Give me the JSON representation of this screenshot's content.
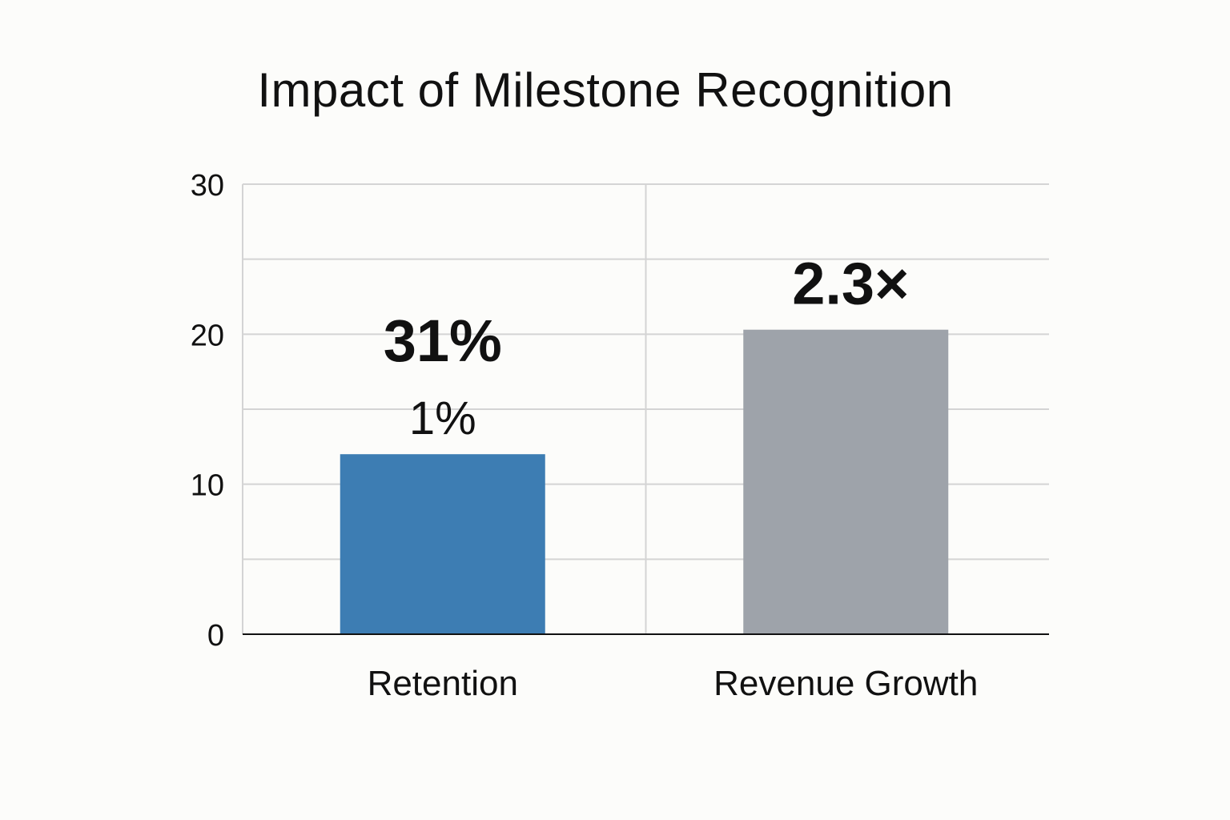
{
  "chart_data": {
    "type": "bar",
    "title": "Impact of Milestone Recognition",
    "xlabel": "",
    "ylabel": "",
    "categories": [
      "Retention",
      "Revenue Growth"
    ],
    "values": [
      12,
      20.3
    ],
    "ylim": [
      0,
      30
    ],
    "yticks": [
      0,
      10,
      20,
      30
    ],
    "grid": true,
    "legend": "none",
    "colors": [
      "#3d7db3",
      "#9ea3aa"
    ],
    "gridline_color": "#d4d4d4",
    "axis_color": "#111111",
    "annotations": [
      {
        "category": "Retention",
        "texts": [
          "31%",
          "1%"
        ]
      },
      {
        "category": "Revenue Growth",
        "texts": [
          "2.3×"
        ]
      }
    ]
  }
}
